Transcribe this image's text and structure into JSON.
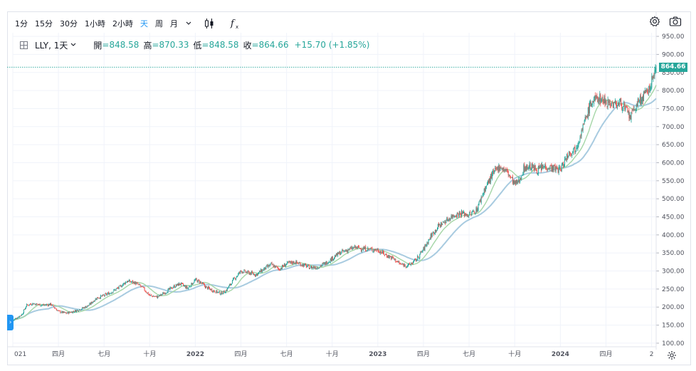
{
  "toolbar": {
    "intervals": [
      "1分",
      "15分",
      "30分",
      "1小時",
      "2小時",
      "天",
      "周",
      "月"
    ],
    "active_interval": "天",
    "dropdown_icon": "chevron-down-icon",
    "chart_type_icon": "candles-icon",
    "indicators_icon": "function-icon",
    "settings_icon": "gear-icon",
    "snapshot_icon": "camera-icon"
  },
  "legend": {
    "symbol": "LLY, 1天",
    "open_label": "開",
    "open_value": "=848.58",
    "high_label": "高",
    "high_value": "=870.33",
    "low_label": "低",
    "low_value": "=848.58",
    "close_label": "收",
    "close_value": "=864.66",
    "change": "+15.70 (+1.85%)"
  },
  "last_price_label": "864.66",
  "colors": {
    "up": "#26a69a",
    "down": "#ef5350",
    "ma_fast": "#a5d6a7",
    "ma_slow": "#a8cbe0",
    "accent": "#2196f3",
    "grid": "#f0f3fa"
  },
  "chart_data": {
    "type": "candlestick",
    "title": "LLY, 1天",
    "x_ticks": [
      "021",
      "四月",
      "七月",
      "十月",
      "2022",
      "四月",
      "七月",
      "十月",
      "2023",
      "四月",
      "七月",
      "十月",
      "2024",
      "四月",
      "2"
    ],
    "x_tick_months": [
      0,
      3,
      6,
      9,
      12,
      15,
      18,
      21,
      24,
      27,
      30,
      33,
      36,
      39,
      42
    ],
    "y_ticks": [
      "100.00",
      "150.00",
      "200.00",
      "250.00",
      "300.00",
      "350.00",
      "400.00",
      "450.00",
      "500.00",
      "550.00",
      "600.00",
      "650.00",
      "700.00",
      "750.00",
      "800.00",
      "850.00",
      "900.00",
      "950.00"
    ],
    "y_tick_values": [
      100,
      150,
      200,
      250,
      300,
      350,
      400,
      450,
      500,
      550,
      600,
      650,
      700,
      750,
      800,
      850,
      900,
      950
    ],
    "ylim": [
      90,
      960
    ],
    "xlim_months": [
      0,
      42.3
    ],
    "price_path": [
      [
        0,
        163
      ],
      [
        0.6,
        180
      ],
      [
        0.9,
        205
      ],
      [
        1.3,
        210
      ],
      [
        2.0,
        205
      ],
      [
        2.5,
        208
      ],
      [
        3.0,
        188
      ],
      [
        3.5,
        183
      ],
      [
        4.0,
        188
      ],
      [
        4.5,
        195
      ],
      [
        5.0,
        205
      ],
      [
        5.5,
        225
      ],
      [
        6.0,
        232
      ],
      [
        6.5,
        242
      ],
      [
        7.0,
        255
      ],
      [
        7.5,
        272
      ],
      [
        8.0,
        268
      ],
      [
        8.5,
        255
      ],
      [
        9.0,
        232
      ],
      [
        9.5,
        228
      ],
      [
        10.0,
        240
      ],
      [
        10.5,
        255
      ],
      [
        11.0,
        265
      ],
      [
        11.5,
        252
      ],
      [
        12.0,
        275
      ],
      [
        12.3,
        270
      ],
      [
        12.7,
        255
      ],
      [
        13.2,
        245
      ],
      [
        13.7,
        238
      ],
      [
        14.0,
        245
      ],
      [
        14.5,
        275
      ],
      [
        15.0,
        300
      ],
      [
        15.5,
        295
      ],
      [
        16.0,
        290
      ],
      [
        16.5,
        305
      ],
      [
        17.0,
        318
      ],
      [
        17.5,
        305
      ],
      [
        18.0,
        320
      ],
      [
        18.5,
        325
      ],
      [
        19.0,
        318
      ],
      [
        19.5,
        310
      ],
      [
        20.0,
        310
      ],
      [
        20.5,
        320
      ],
      [
        21.0,
        335
      ],
      [
        21.5,
        350
      ],
      [
        22.0,
        358
      ],
      [
        22.5,
        365
      ],
      [
        23.0,
        362
      ],
      [
        23.5,
        360
      ],
      [
        24.0,
        358
      ],
      [
        24.5,
        345
      ],
      [
        25.0,
        335
      ],
      [
        25.5,
        318
      ],
      [
        26.0,
        315
      ],
      [
        26.5,
        330
      ],
      [
        27.0,
        360
      ],
      [
        27.5,
        398
      ],
      [
        28.0,
        425
      ],
      [
        28.5,
        440
      ],
      [
        29.0,
        455
      ],
      [
        29.5,
        460
      ],
      [
        30.0,
        455
      ],
      [
        30.5,
        470
      ],
      [
        31.0,
        525
      ],
      [
        31.5,
        565
      ],
      [
        32.0,
        590
      ],
      [
        32.5,
        575
      ],
      [
        33.0,
        540
      ],
      [
        33.3,
        550
      ],
      [
        33.6,
        585
      ],
      [
        34.0,
        590
      ],
      [
        34.5,
        580
      ],
      [
        35.0,
        590
      ],
      [
        35.5,
        585
      ],
      [
        36.0,
        580
      ],
      [
        36.5,
        625
      ],
      [
        37.0,
        640
      ],
      [
        37.5,
        700
      ],
      [
        38.0,
        765
      ],
      [
        38.5,
        780
      ],
      [
        39.0,
        770
      ],
      [
        39.5,
        762
      ],
      [
        40.0,
        765
      ],
      [
        40.3,
        745
      ],
      [
        40.6,
        725
      ],
      [
        41.0,
        760
      ],
      [
        41.5,
        785
      ],
      [
        41.8,
        800
      ],
      [
        42.0,
        825
      ],
      [
        42.2,
        850
      ],
      [
        42.3,
        864.66
      ]
    ],
    "last_close": 864.66,
    "open": 848.58,
    "high": 870.33,
    "low": 848.58,
    "close": 864.66,
    "change": 15.7,
    "change_pct": 1.85,
    "series": [
      {
        "name": "price",
        "kind": "candles"
      },
      {
        "name": "MA fast",
        "kind": "line"
      },
      {
        "name": "MA slow",
        "kind": "line"
      }
    ]
  }
}
